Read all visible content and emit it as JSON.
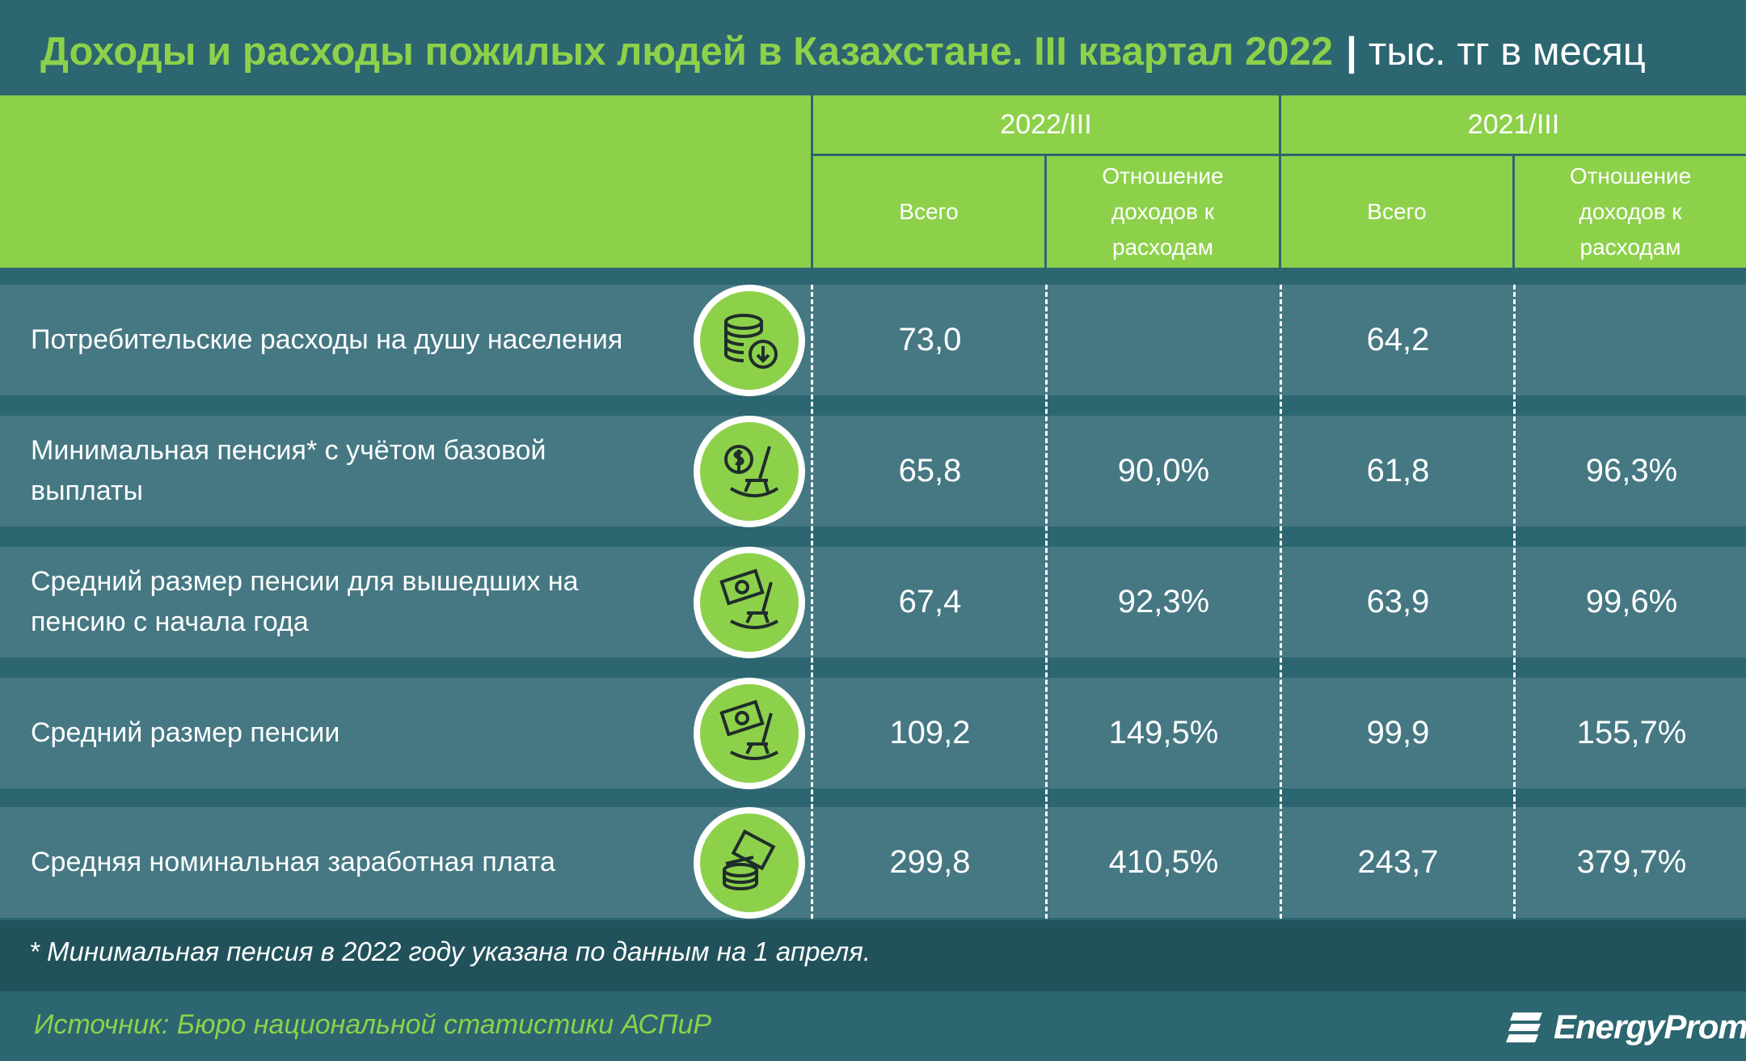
{
  "title": {
    "main": "Доходы и расходы пожилых людей в Казахстане. III квартал 2022",
    "separator": "|",
    "unit": "тыс. тг в месяц"
  },
  "colors": {
    "background": "#2c6670",
    "header": "#8dd14b",
    "row": "#457883",
    "footnote_band": "#21525b",
    "accent": "#8dd14b"
  },
  "chart_data": {
    "type": "table",
    "title": "Доходы и расходы пожилых людей в Казахстане. III квартал 2022",
    "unit": "тыс. тг в месяц",
    "column_groups": [
      {
        "label": "2022/III",
        "sub": [
          "Всего",
          "Отношение доходов к расходам"
        ]
      },
      {
        "label": "2021/III",
        "sub": [
          "Всего",
          "Отношение доходов к расходам"
        ]
      }
    ],
    "sub_header_all": [
      "Всего"
    ],
    "sub_header_ratio_lines": [
      "Отношение",
      "доходов к",
      "расходам"
    ],
    "rows": [
      {
        "label_lines": [
          "Потребительские расходы на душу населения"
        ],
        "icon": "coins-down-icon",
        "values": [
          "73,0",
          "",
          "64,2",
          ""
        ]
      },
      {
        "label_lines": [
          "Минимальная пенсия* с учётом базовой",
          "выплаты"
        ],
        "icon": "rocking-chair-dollar-icon",
        "values": [
          "65,8",
          "90,0%",
          "61,8",
          "96,3%"
        ]
      },
      {
        "label_lines": [
          "Средний размер пенсии для вышедших на",
          "пенсию с начала года"
        ],
        "icon": "rocking-chair-banknote-icon",
        "values": [
          "67,4",
          "92,3%",
          "63,9",
          "99,6%"
        ]
      },
      {
        "label_lines": [
          "Средний размер пенсии"
        ],
        "icon": "rocking-chair-banknote-icon",
        "values": [
          "109,2",
          "149,5%",
          "99,9",
          "155,7%"
        ]
      },
      {
        "label_lines": [
          "Средняя номинальная заработная плата"
        ],
        "icon": "money-coins-icon",
        "values": [
          "299,8",
          "410,5%",
          "243,7",
          "379,7%"
        ]
      }
    ]
  },
  "footnote": "* Минимальная пенсия в 2022 году указана по данным на 1 апреля.",
  "source": "Источник: Бюро национальной статистики АСПиР",
  "logo": {
    "text": "EnergyProm"
  }
}
